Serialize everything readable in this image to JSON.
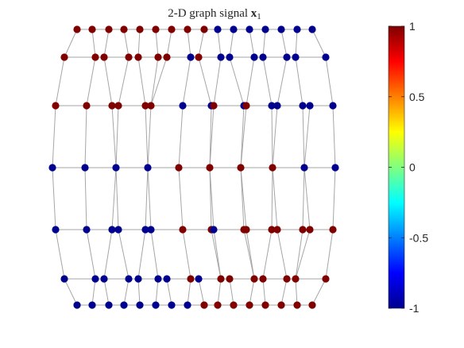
{
  "chart_data": {
    "type": "scatter",
    "title": "2-D graph signal",
    "title_math": "x",
    "title_subscript": "1",
    "colormap": "jet",
    "colorbar": {
      "clim": [
        -1,
        1
      ],
      "ticks": [
        1,
        0.5,
        0,
        -0.5,
        -1
      ],
      "tick_labels": [
        "1",
        "0.5",
        "0",
        "-0.5",
        "-1"
      ],
      "placement": "right"
    },
    "edge_color": "#a6a6a6",
    "rows": [
      {
        "signal": [
          1,
          1,
          1,
          1,
          1,
          1,
          1,
          1,
          1,
          -1,
          -1,
          -1,
          -1,
          -1,
          -1,
          -1
        ]
      },
      {
        "signal": [
          1,
          1,
          1,
          1,
          1,
          1,
          1,
          -1,
          1,
          -1,
          -1,
          -1,
          -1,
          -1,
          -1,
          -1
        ]
      },
      {
        "signal": [
          1,
          1,
          1,
          1,
          1,
          1,
          -1,
          -1,
          1,
          -1,
          1,
          -1,
          -1,
          -1,
          -1,
          -1
        ]
      },
      {
        "signal": [
          -1,
          -1,
          -1,
          -1,
          1,
          1,
          1,
          1,
          -1,
          -1
        ]
      },
      {
        "signal": [
          -1,
          -1,
          -1,
          -1,
          -1,
          -1,
          1,
          1,
          -1,
          1,
          1,
          1,
          1,
          1,
          1,
          1
        ]
      },
      {
        "signal": [
          -1,
          -1,
          -1,
          -1,
          -1,
          -1,
          -1,
          1,
          -1,
          1,
          1,
          1,
          1,
          1,
          1,
          1
        ]
      },
      {
        "signal": [
          -1,
          -1,
          -1,
          -1,
          -1,
          -1,
          -1,
          -1,
          1,
          1,
          1,
          1,
          1,
          1,
          1,
          1
        ]
      }
    ]
  }
}
